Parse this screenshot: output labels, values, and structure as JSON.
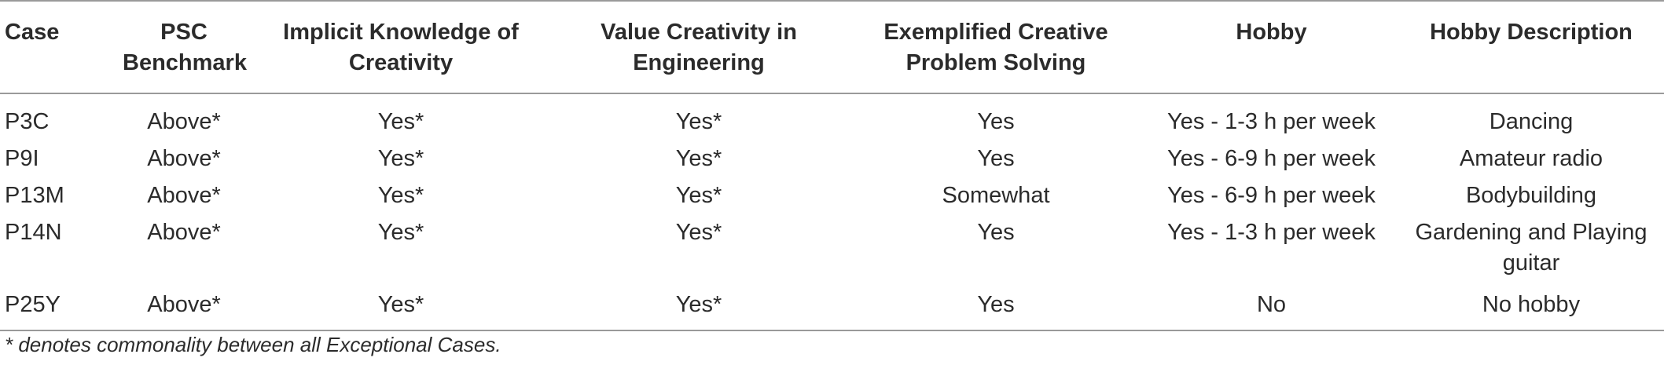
{
  "table": {
    "headers": [
      "Case",
      "PSC Benchmark",
      "Implicit Knowledge of Creativity",
      "Value Creativity in Engineering",
      "Exemplified Creative Problem Solving",
      "Hobby",
      "Hobby Description"
    ],
    "header_lines": [
      [
        "Case"
      ],
      [
        "PSC",
        "Benchmark"
      ],
      [
        "Implicit Knowledge of",
        "Creativity"
      ],
      [
        "Value Creativity in",
        "Engineering"
      ],
      [
        "Exemplified Creative",
        "Problem Solving"
      ],
      [
        "Hobby"
      ],
      [
        "Hobby Description"
      ]
    ],
    "rows": [
      [
        "P3C",
        "Above*",
        "Yes*",
        "Yes*",
        "Yes",
        "Yes - 1-3 h per week",
        "Dancing"
      ],
      [
        "P9I",
        "Above*",
        "Yes*",
        "Yes*",
        "Yes",
        "Yes - 6-9 h per week",
        "Amateur radio"
      ],
      [
        "P13M",
        "Above*",
        "Yes*",
        "Yes*",
        "Somewhat",
        "Yes - 6-9 h per week",
        "Bodybuilding"
      ],
      [
        "P14N",
        "Above*",
        "Yes*",
        "Yes*",
        "Yes",
        "Yes - 1-3 h per week",
        "Gardening and Playing guitar"
      ],
      [
        "P25Y",
        "Above*",
        "Yes*",
        "Yes*",
        "Yes",
        "No",
        "No hobby"
      ]
    ]
  },
  "footnote": "* denotes commonality between all Exceptional Cases."
}
